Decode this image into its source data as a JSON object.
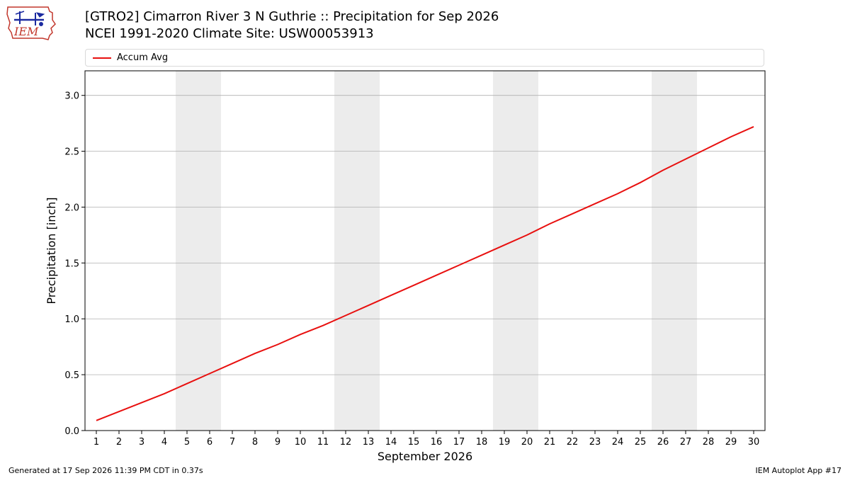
{
  "header": {
    "logo_text": "IEM",
    "title": "[GTRO2] Cimarron River 3 N Guthrie :: Precipitation for Sep 2026",
    "subtitle": "NCEI 1991-2020 Climate Site: USW00053913"
  },
  "legend": {
    "label": "Accum Avg",
    "color": "#e8100f"
  },
  "footer": {
    "generated": "Generated at 17 Sep 2026 11:39 PM CDT in 0.37s",
    "app": "IEM Autoplot App #17"
  },
  "chart_data": {
    "type": "line",
    "title": "[GTRO2] Cimarron River 3 N Guthrie :: Precipitation for Sep 2026",
    "xlabel": "September 2026",
    "ylabel": "Precipitation [inch]",
    "xlim": [
      0.5,
      30.5
    ],
    "ylim": [
      0,
      3.22
    ],
    "yticks": [
      0.0,
      0.5,
      1.0,
      1.5,
      2.0,
      2.5,
      3.0
    ],
    "ytick_labels": [
      "0.0",
      "0.5",
      "1.0",
      "1.5",
      "2.0",
      "2.5",
      "3.0"
    ],
    "x": [
      1,
      2,
      3,
      4,
      5,
      6,
      7,
      8,
      9,
      10,
      11,
      12,
      13,
      14,
      15,
      16,
      17,
      18,
      19,
      20,
      21,
      22,
      23,
      24,
      25,
      26,
      27,
      28,
      29,
      30
    ],
    "xtick_labels": [
      "1",
      "2",
      "3",
      "4",
      "5",
      "6",
      "7",
      "8",
      "9",
      "10",
      "11",
      "12",
      "13",
      "14",
      "15",
      "16",
      "17",
      "18",
      "19",
      "20",
      "21",
      "22",
      "23",
      "24",
      "25",
      "26",
      "27",
      "28",
      "29",
      "30"
    ],
    "weekend_bands": [
      [
        4.5,
        6.5
      ],
      [
        11.5,
        13.5
      ],
      [
        18.5,
        20.5
      ],
      [
        25.5,
        27.5
      ]
    ],
    "grid": "horizontal",
    "legend_position": "top",
    "series": [
      {
        "name": "Accum Avg",
        "color": "#e8100f",
        "values": [
          0.09,
          0.17,
          0.25,
          0.33,
          0.42,
          0.51,
          0.6,
          0.69,
          0.77,
          0.86,
          0.94,
          1.03,
          1.12,
          1.21,
          1.3,
          1.39,
          1.48,
          1.57,
          1.66,
          1.75,
          1.85,
          1.94,
          2.03,
          2.12,
          2.22,
          2.33,
          2.43,
          2.53,
          2.63,
          2.72
        ]
      }
    ]
  }
}
